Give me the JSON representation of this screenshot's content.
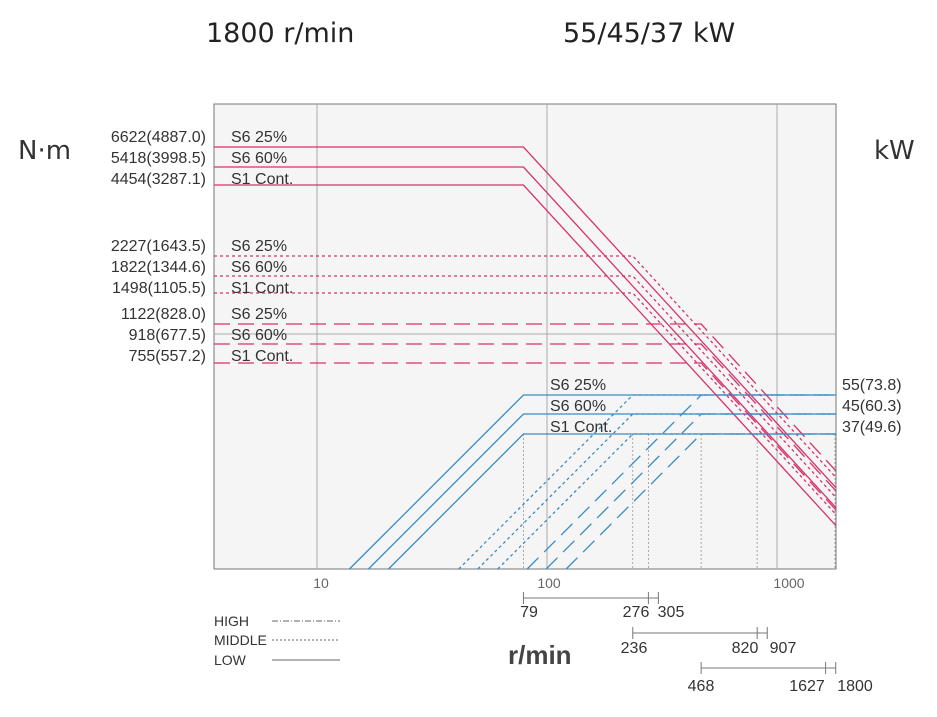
{
  "header": {
    "speed": "1800 r/min",
    "power": "55/45/37 kW"
  },
  "axes": {
    "left_unit": "N·m",
    "right_unit": "kW",
    "xlabel": "r/min"
  },
  "legend": [
    {
      "label": "HIGH",
      "style": "dashdot"
    },
    {
      "label": "MIDDLE",
      "style": "dotted"
    },
    {
      "label": "LOW",
      "style": "solid"
    }
  ],
  "colors": {
    "torque": "#d6336c",
    "power": "#3a8cc6",
    "grid": "#aaaaaa",
    "plot_bg": "#f5f5f5"
  },
  "chart_data": {
    "type": "line",
    "xscale": "log",
    "xlim": [
      4,
      1600
    ],
    "xticks": [
      10,
      100,
      1000
    ],
    "xtick_labels": [
      "10",
      "100",
      "1000"
    ],
    "speed_markers": {
      "HIGH": [
        "79",
        "276",
        "305"
      ],
      "MIDDLE": [
        "236",
        "820",
        "907"
      ],
      "LOW": [
        "468",
        "1627",
        "1800"
      ]
    },
    "torque_labels": [
      {
        "value": "6622(4887.0)",
        "label": "S6 25%",
        "range": "HIGH"
      },
      {
        "value": "5418(3998.5)",
        "label": "S6 60%",
        "range": "HIGH"
      },
      {
        "value": "4454(3287.1)",
        "label": "S1 Cont.",
        "range": "HIGH"
      },
      {
        "value": "2227(1643.5)",
        "label": "S6 25%",
        "range": "MIDDLE"
      },
      {
        "value": "1822(1344.6)",
        "label": "S6 60%",
        "range": "MIDDLE"
      },
      {
        "value": "1498(1105.5)",
        "label": "S1 Cont.",
        "range": "MIDDLE"
      },
      {
        "value": "1122(828.0)",
        "label": "S6 25%",
        "range": "LOW"
      },
      {
        "value": "918(677.5)",
        "label": "S6 60%",
        "range": "LOW"
      },
      {
        "value": "755(557.2)",
        "label": "S1 Cont.",
        "range": "LOW"
      }
    ],
    "power_labels": [
      {
        "value": "55(73.8)",
        "label": "S6 25%"
      },
      {
        "value": "45(60.3)",
        "label": "S6 60%"
      },
      {
        "value": "37(49.6)",
        "label": "S1 Cont."
      }
    ],
    "torque_series": {
      "HIGH": {
        "base_speed": 79,
        "max_speed": 276,
        "torque": [
          6622,
          5418,
          4454
        ]
      },
      "MIDDLE": {
        "base_speed": 236,
        "max_speed": 820,
        "torque": [
          2227,
          1822,
          1498
        ]
      },
      "LOW": {
        "base_speed": 468,
        "max_speed": 1800,
        "torque": [
          1122,
          918,
          755
        ]
      }
    },
    "power_kw": [
      55,
      45,
      37
    ]
  }
}
